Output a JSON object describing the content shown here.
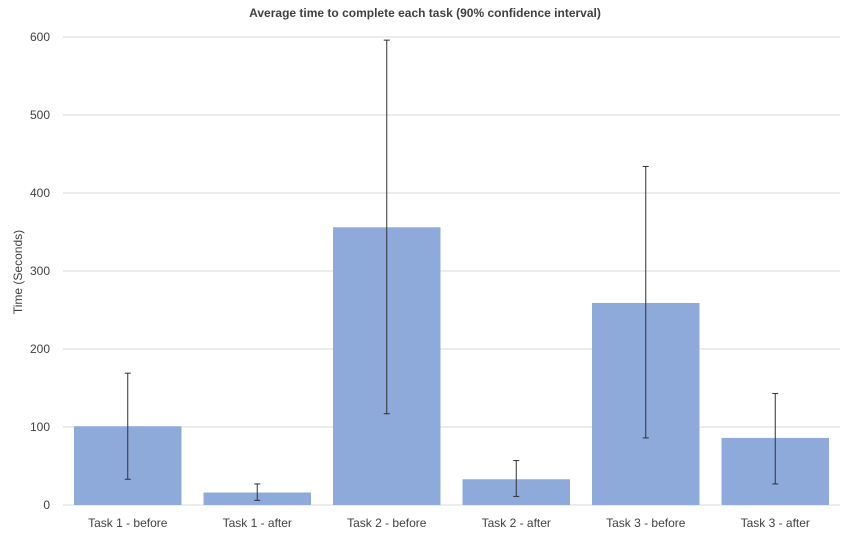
{
  "chart_data": {
    "type": "bar",
    "title": "Average time to complete each task (90% confidence interval)",
    "xlabel": "",
    "ylabel": "Time (Seconds)",
    "ylim": [
      0,
      600
    ],
    "yticks": [
      0,
      100,
      200,
      300,
      400,
      500,
      600
    ],
    "grid": true,
    "legend": "none",
    "bar_color": "#8eaadb",
    "error_bar_color": "#303030",
    "categories": [
      "Task 1 - before",
      "Task 1 - after",
      "Task 2 - before",
      "Task 2 - after",
      "Task 3 - before",
      "Task 3 - after"
    ],
    "values": [
      101,
      16,
      356,
      33,
      259,
      86
    ],
    "error_low": [
      33,
      6,
      117,
      11,
      86,
      27
    ],
    "error_high": [
      169,
      27,
      596,
      57,
      434,
      143
    ]
  }
}
